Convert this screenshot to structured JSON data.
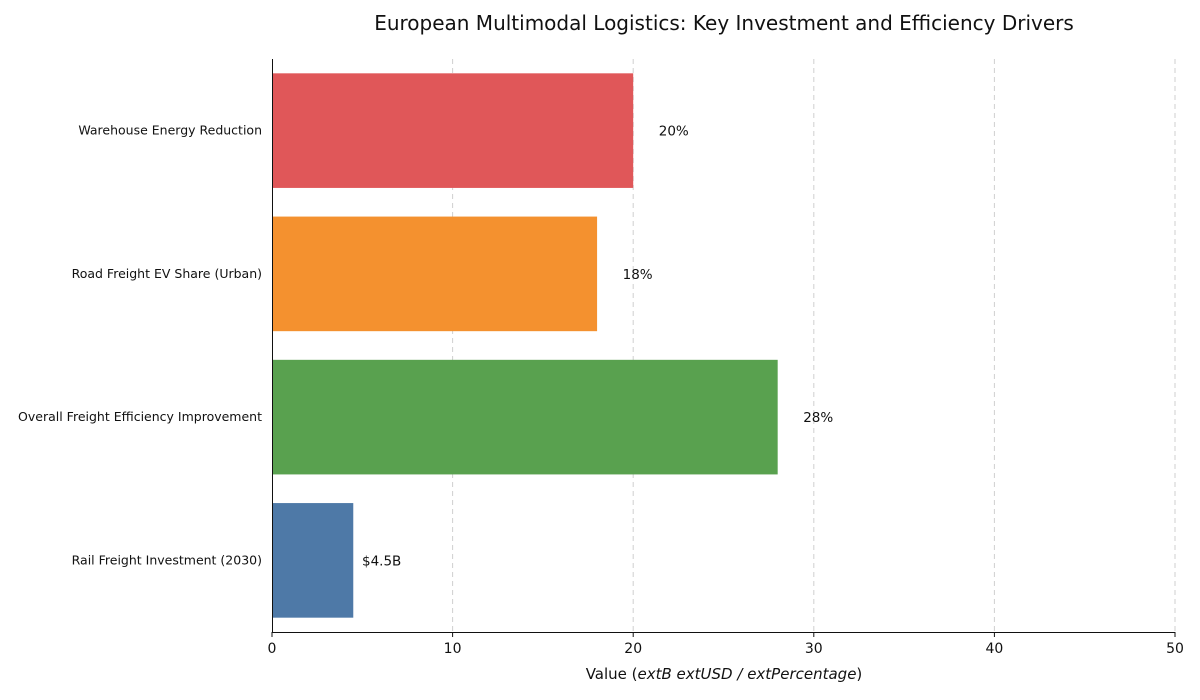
{
  "chart_data": {
    "type": "bar",
    "orientation": "horizontal",
    "title": "European Multimodal Logistics: Key Investment and Efficiency Drivers",
    "xlabel": "Value (extB extUSD / extPercentage)",
    "ylabel": "",
    "xlim": [
      0,
      50
    ],
    "xticks": [
      0,
      10,
      20,
      30,
      40,
      50
    ],
    "grid": "x-dashed",
    "categories": [
      "Warehouse Energy Reduction",
      "Road Freight EV Share (Urban)",
      "Overall Freight Efficiency Improvement",
      "Rail Freight Investment (2030)"
    ],
    "values": [
      20,
      18,
      28,
      4.5
    ],
    "data_labels": [
      "20%",
      "18%",
      "28%",
      "$4.5B"
    ],
    "colors": [
      "#e05759",
      "#f4912f",
      "#59a14f",
      "#4e79a7"
    ]
  }
}
